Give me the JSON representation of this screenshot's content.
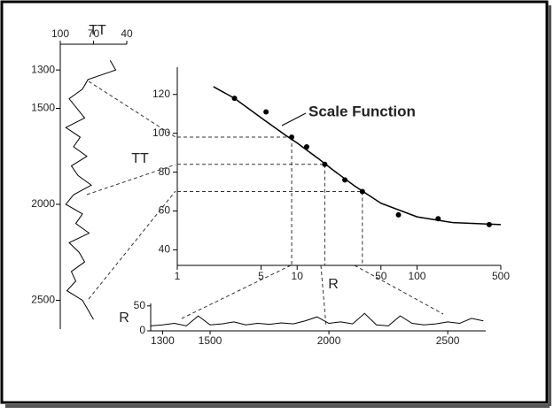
{
  "chart_data": [
    {
      "type": "scatter",
      "annotation": "Scale Function",
      "y_label": "TT",
      "x_label": "R",
      "log_x": true,
      "x": [
        3,
        5.5,
        9,
        12,
        17,
        25,
        35,
        70,
        150,
        400
      ],
      "y": [
        118,
        111,
        98,
        93,
        84,
        76,
        70,
        58,
        56,
        53
      ],
      "fit_x": [
        2,
        3,
        5,
        8,
        10,
        15,
        20,
        30,
        50,
        100,
        200,
        500
      ],
      "fit_y": [
        124,
        118,
        108,
        99,
        95,
        87,
        81,
        73,
        64,
        57,
        54,
        53
      ],
      "xlim": [
        1,
        500
      ],
      "xticks": [
        1,
        5,
        10,
        50,
        100,
        500
      ],
      "ylim": [
        32,
        134
      ],
      "yticks": [
        40,
        60,
        80,
        100,
        120
      ],
      "color": "#000000"
    },
    {
      "type": "line",
      "orientation": "vertical",
      "x_label": "TT",
      "x": [
        1250,
        1300,
        1350,
        1400,
        1450,
        1500,
        1550,
        1600,
        1650,
        1700,
        1750,
        1800,
        1850,
        1900,
        1950,
        2000,
        2050,
        2100,
        2150,
        2200,
        2250,
        2300,
        2350,
        2400,
        2450,
        2500,
        2550,
        2600
      ],
      "values": [
        55,
        50,
        75,
        80,
        92,
        85,
        78,
        95,
        82,
        88,
        76,
        90,
        84,
        72,
        88,
        95,
        80,
        86,
        74,
        92,
        83,
        78,
        90,
        86,
        94,
        80,
        75,
        70
      ],
      "xlim": [
        1235,
        2650
      ],
      "xticks": [
        1300,
        1500,
        2000,
        2500
      ],
      "ylim": [
        100,
        40
      ],
      "yticks": [
        100,
        70,
        40
      ],
      "color": "#000000"
    },
    {
      "type": "line",
      "orientation": "horizontal",
      "y_label": "R",
      "x": [
        1250,
        1300,
        1350,
        1400,
        1450,
        1500,
        1550,
        1600,
        1650,
        1700,
        1750,
        1800,
        1850,
        1900,
        1950,
        2000,
        2050,
        2100,
        2150,
        2200,
        2250,
        2300,
        2350,
        2400,
        2450,
        2500,
        2550,
        2600,
        2650
      ],
      "values": [
        10,
        12,
        15,
        10,
        30,
        12,
        14,
        18,
        12,
        15,
        13,
        16,
        14,
        20,
        28,
        15,
        18,
        14,
        35,
        12,
        10,
        30,
        15,
        12,
        14,
        18,
        15,
        25,
        20
      ],
      "xlim": [
        1250,
        2660
      ],
      "xticks": [
        1300,
        1500,
        2000,
        2500
      ],
      "ylim": [
        0,
        55
      ],
      "yticks": [
        0,
        50
      ],
      "color": "#000000"
    }
  ]
}
